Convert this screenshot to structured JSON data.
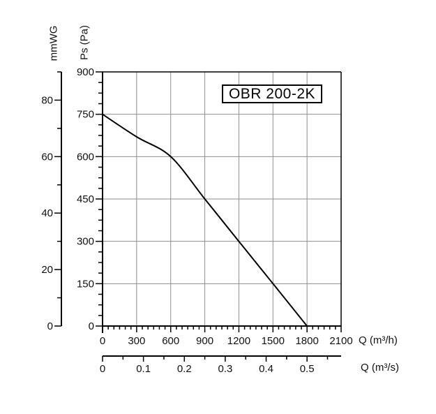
{
  "chart_data": {
    "type": "line",
    "title": "OBR 200-2K",
    "x_primary": {
      "label": "Q (m³/h)",
      "tick_values": [
        0,
        300,
        600,
        900,
        1200,
        1500,
        1800,
        2100
      ],
      "minor_step": 50,
      "range": [
        0,
        2100
      ]
    },
    "x_secondary": {
      "label": "Q (m³/s)",
      "tick_values": [
        0,
        0.1,
        0.2,
        0.3,
        0.4,
        0.5
      ],
      "minor_step": 0.05,
      "minor_max": 0.55,
      "range": [
        0,
        0.583
      ]
    },
    "y_pa": {
      "label": "Ps (Pa)",
      "tick_values": [
        0,
        150,
        300,
        450,
        600,
        750,
        900
      ],
      "minor_divisions_per_interval": 4,
      "range": [
        0,
        900
      ]
    },
    "y_mmwg": {
      "label": "mmWG",
      "tick_values": [
        0,
        20,
        40,
        60,
        80
      ],
      "minor_step": 10,
      "axis_top": 90,
      "range": [
        0,
        90
      ]
    },
    "series": [
      {
        "name": "OBR 200-2K",
        "points": [
          [
            0,
            750
          ],
          [
            300,
            670
          ],
          [
            600,
            600
          ],
          [
            900,
            450
          ],
          [
            1200,
            300
          ],
          [
            1500,
            150
          ],
          [
            1800,
            0
          ]
        ]
      }
    ],
    "grid": true,
    "colors": {
      "curve": "#000000",
      "grid": "#8e8e8e",
      "axis": "#000000",
      "background": "#ffffff"
    }
  }
}
